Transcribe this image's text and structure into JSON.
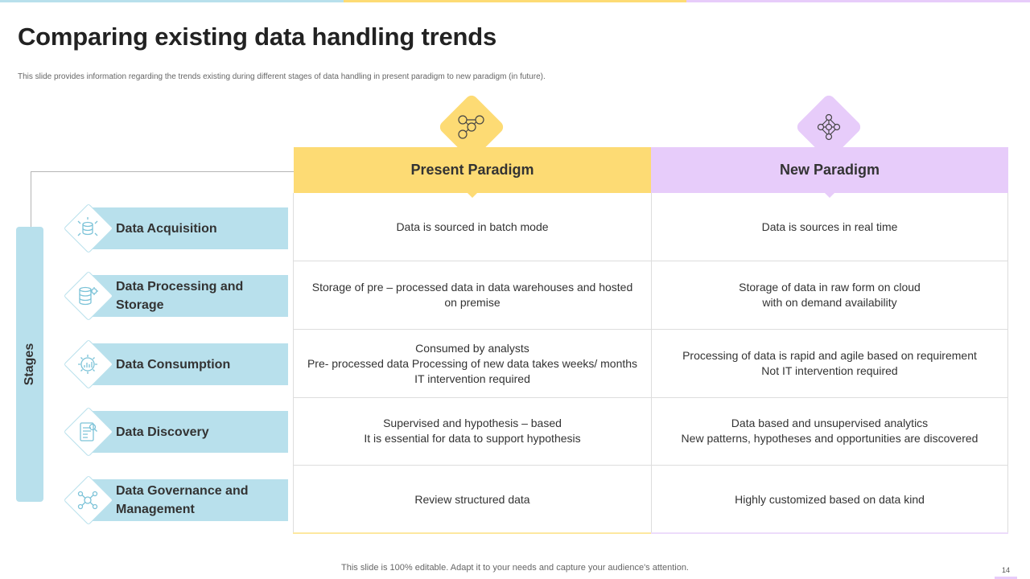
{
  "colors": {
    "top_bar": [
      "#b8e0ec",
      "#fddb74",
      "#e7ccfa"
    ],
    "present_accent": "#fddb74",
    "new_accent": "#e7ccfa",
    "stage_accent": "#b8e0ec"
  },
  "slide": {
    "title": "Comparing existing data handling trends",
    "subtitle": "This slide provides information regarding the trends existing during different stages of data handling in present paradigm to new paradigm (in future).",
    "footer": "This slide is 100% editable. Adapt it to your needs and capture your audience's attention.",
    "page_number": "14"
  },
  "stages": {
    "label": "Stages",
    "items": [
      {
        "label": "Data Acquisition",
        "icon": "database-icon"
      },
      {
        "label": "Data Processing and Storage",
        "icon": "storage-gear-icon"
      },
      {
        "label": "Data Consumption",
        "icon": "chart-gear-icon"
      },
      {
        "label": "Data Discovery",
        "icon": "document-search-icon"
      },
      {
        "label": "Data Governance and Management",
        "icon": "network-gear-icon"
      }
    ]
  },
  "table": {
    "present_header": "Present Paradigm",
    "new_header": "New Paradigm",
    "present_icon": "network-nodes-icon",
    "new_icon": "neural-network-icon",
    "rows": [
      {
        "present": "Data is sourced in batch mode",
        "new": "Data is sources in real time"
      },
      {
        "present": "Storage of pre – processed data in data warehouses and hosted on premise",
        "new": "Storage of data in raw form on cloud\nwith on demand availability"
      },
      {
        "present": "Consumed by analysts\nPre- processed data  Processing of new data takes weeks/ months IT intervention required",
        "new": "Processing of data is rapid and agile based on requirement\nNot IT intervention  required"
      },
      {
        "present": "Supervised and hypothesis – based\nIt is essential for data to support  hypothesis",
        "new": "Data based and unsupervised analytics\nNew patterns, hypotheses and opportunities  are discovered"
      },
      {
        "present": "Review structured data",
        "new": "Highly customized based on data kind"
      }
    ]
  }
}
